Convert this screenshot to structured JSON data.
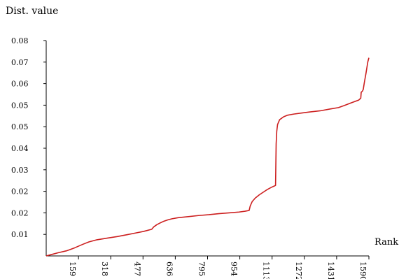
{
  "chart_data": {
    "type": "line",
    "title": "",
    "ylabel": "Dist. value",
    "xlabel": "Rank",
    "y_tick_labels": [
      "0.08",
      "0.07",
      "0.06",
      "0.05",
      "0.05",
      "0.04",
      "0.03",
      "0.02",
      "0.02",
      "0.01"
    ],
    "x_tick_labels": [
      "159",
      "318",
      "477",
      "636",
      "795",
      "954",
      "1113",
      "1272",
      "1431",
      "1590"
    ],
    "xlim": [
      0,
      1590
    ],
    "ylim": [
      0,
      0.08
    ],
    "grid": false,
    "series": [
      {
        "color": "#cc1f1f",
        "x": [
          0,
          20,
          60,
          100,
          140,
          180,
          210,
          250,
          300,
          350,
          400,
          440,
          480,
          520,
          530,
          545,
          560,
          580,
          600,
          620,
          650,
          700,
          750,
          800,
          850,
          900,
          950,
          980,
          1000,
          1005,
          1015,
          1030,
          1050,
          1070,
          1090,
          1110,
          1125,
          1130,
          1133,
          1136,
          1140,
          1150,
          1170,
          1190,
          1220,
          1260,
          1300,
          1350,
          1400,
          1440,
          1470,
          1500,
          1540,
          1550,
          1552,
          1558,
          1562,
          1568,
          1572,
          1576,
          1580,
          1585,
          1590
        ],
        "y": [
          0.0,
          0.0004,
          0.0012,
          0.0019,
          0.003,
          0.0043,
          0.0052,
          0.006,
          0.0066,
          0.0072,
          0.0079,
          0.0085,
          0.0091,
          0.0099,
          0.0108,
          0.0116,
          0.0122,
          0.0129,
          0.0134,
          0.0138,
          0.0142,
          0.0146,
          0.015,
          0.0153,
          0.0157,
          0.016,
          0.0163,
          0.0166,
          0.0169,
          0.0185,
          0.0202,
          0.0215,
          0.0227,
          0.0237,
          0.0247,
          0.0255,
          0.026,
          0.0262,
          0.0416,
          0.0463,
          0.0488,
          0.0506,
          0.0517,
          0.0523,
          0.0527,
          0.0531,
          0.0535,
          0.0539,
          0.0546,
          0.0551,
          0.0559,
          0.0568,
          0.0579,
          0.0586,
          0.0608,
          0.0612,
          0.0618,
          0.0646,
          0.0663,
          0.068,
          0.0699,
          0.0722,
          0.0736
        ]
      }
    ]
  },
  "colors": {
    "line": "#cc1f1f",
    "axis": "#000000"
  }
}
